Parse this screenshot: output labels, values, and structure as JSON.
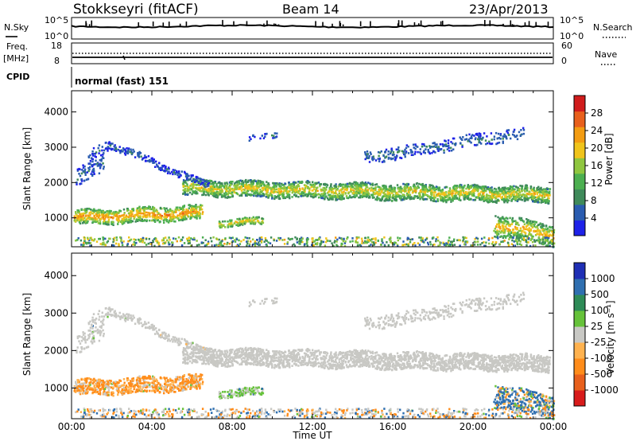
{
  "header": {
    "station": "Stokkseyri (fitACF)",
    "beam": "Beam 14",
    "date": "23/Apr/2013"
  },
  "noise_panel": {
    "left_label": "N.Sky",
    "right_label": "N.Search",
    "left_ticks": [
      "10^5",
      "10^0"
    ],
    "right_ticks": [
      "10^5",
      "10^0"
    ]
  },
  "freq_panel": {
    "left_label_1": "Freq.",
    "left_label_2": "[MHz]",
    "left_ticks": [
      "18",
      "8"
    ],
    "right_ticks": [
      "60",
      "0"
    ],
    "right_label": "Nave"
  },
  "cpid_panel": {
    "label": "CPID",
    "text": "normal (fast) 151"
  },
  "colors": {
    "power": [
      "#1e22e8",
      "#2a5cb0",
      "#3f8a5a",
      "#4caf50",
      "#8fc63f",
      "#f0c41b",
      "#f39c12",
      "#e8601c",
      "#d01c1c"
    ],
    "velocity": [
      "#1f2fb5",
      "#2f6fb0",
      "#2e8b57",
      "#66c23a",
      "#c8c8c4",
      "#ffb24f",
      "#ff8c1a",
      "#e8601c",
      "#d81b1b"
    ],
    "ground_scatter": "#c8c8c4"
  },
  "chart_data": [
    {
      "type": "heatmap",
      "name": "Power",
      "xlabel": "",
      "ylabel": "Slant Range [km]",
      "xlim": [
        0,
        24
      ],
      "ylim": [
        180,
        4600
      ],
      "yticks": [
        1000,
        2000,
        3000,
        4000
      ],
      "colorbar": {
        "label": "Power [dB]",
        "range": [
          0,
          32
        ],
        "ticks": [
          4,
          8,
          12,
          16,
          20,
          24,
          28
        ]
      },
      "features": [
        {
          "desc": "main F-region band",
          "x": [
            5.5,
            23.8
          ],
          "range_km": [
            1450,
            2000
          ],
          "value": 16
        },
        {
          "desc": "early band",
          "x": [
            0.1,
            6.5
          ],
          "range_km": [
            850,
            1300
          ],
          "value": 22
        },
        {
          "desc": "rising arc",
          "x": [
            1.8,
            6.8
          ],
          "range_km": [
            1700,
            3100
          ],
          "value": 4
        },
        {
          "desc": "upper patch",
          "x": [
            14.5,
            22.5
          ],
          "range_km": [
            2600,
            3500
          ],
          "value": 6
        },
        {
          "desc": "late near patch",
          "x": [
            21.0,
            24.0
          ],
          "range_km": [
            350,
            1100
          ],
          "value": 22
        }
      ]
    },
    {
      "type": "heatmap",
      "name": "Velocity",
      "xlabel": "Time UT",
      "ylabel": "Slant Range [km]",
      "xlim": [
        0,
        24
      ],
      "ylim": [
        180,
        4600
      ],
      "yticks": [
        1000,
        2000,
        3000,
        4000
      ],
      "xticks": [
        "00:00",
        "04:00",
        "08:00",
        "12:00",
        "16:00",
        "20:00",
        "00:00"
      ],
      "colorbar": {
        "label": "Velocity [m s⁻¹]",
        "ticks": [
          "1000",
          "500",
          "100",
          "25",
          "-25",
          "-100",
          "-500",
          "-1000"
        ]
      },
      "features": [
        {
          "desc": "ground scatter band",
          "x": [
            5.5,
            23.8
          ],
          "range_km": [
            1450,
            2000
          ],
          "value": 0
        },
        {
          "desc": "early flow",
          "x": [
            0.1,
            6.5
          ],
          "range_km": [
            850,
            1300
          ],
          "value": -120
        },
        {
          "desc": "late flow",
          "x": [
            21.0,
            24.0
          ],
          "range_km": [
            350,
            1100
          ],
          "value": 150
        }
      ]
    }
  ]
}
